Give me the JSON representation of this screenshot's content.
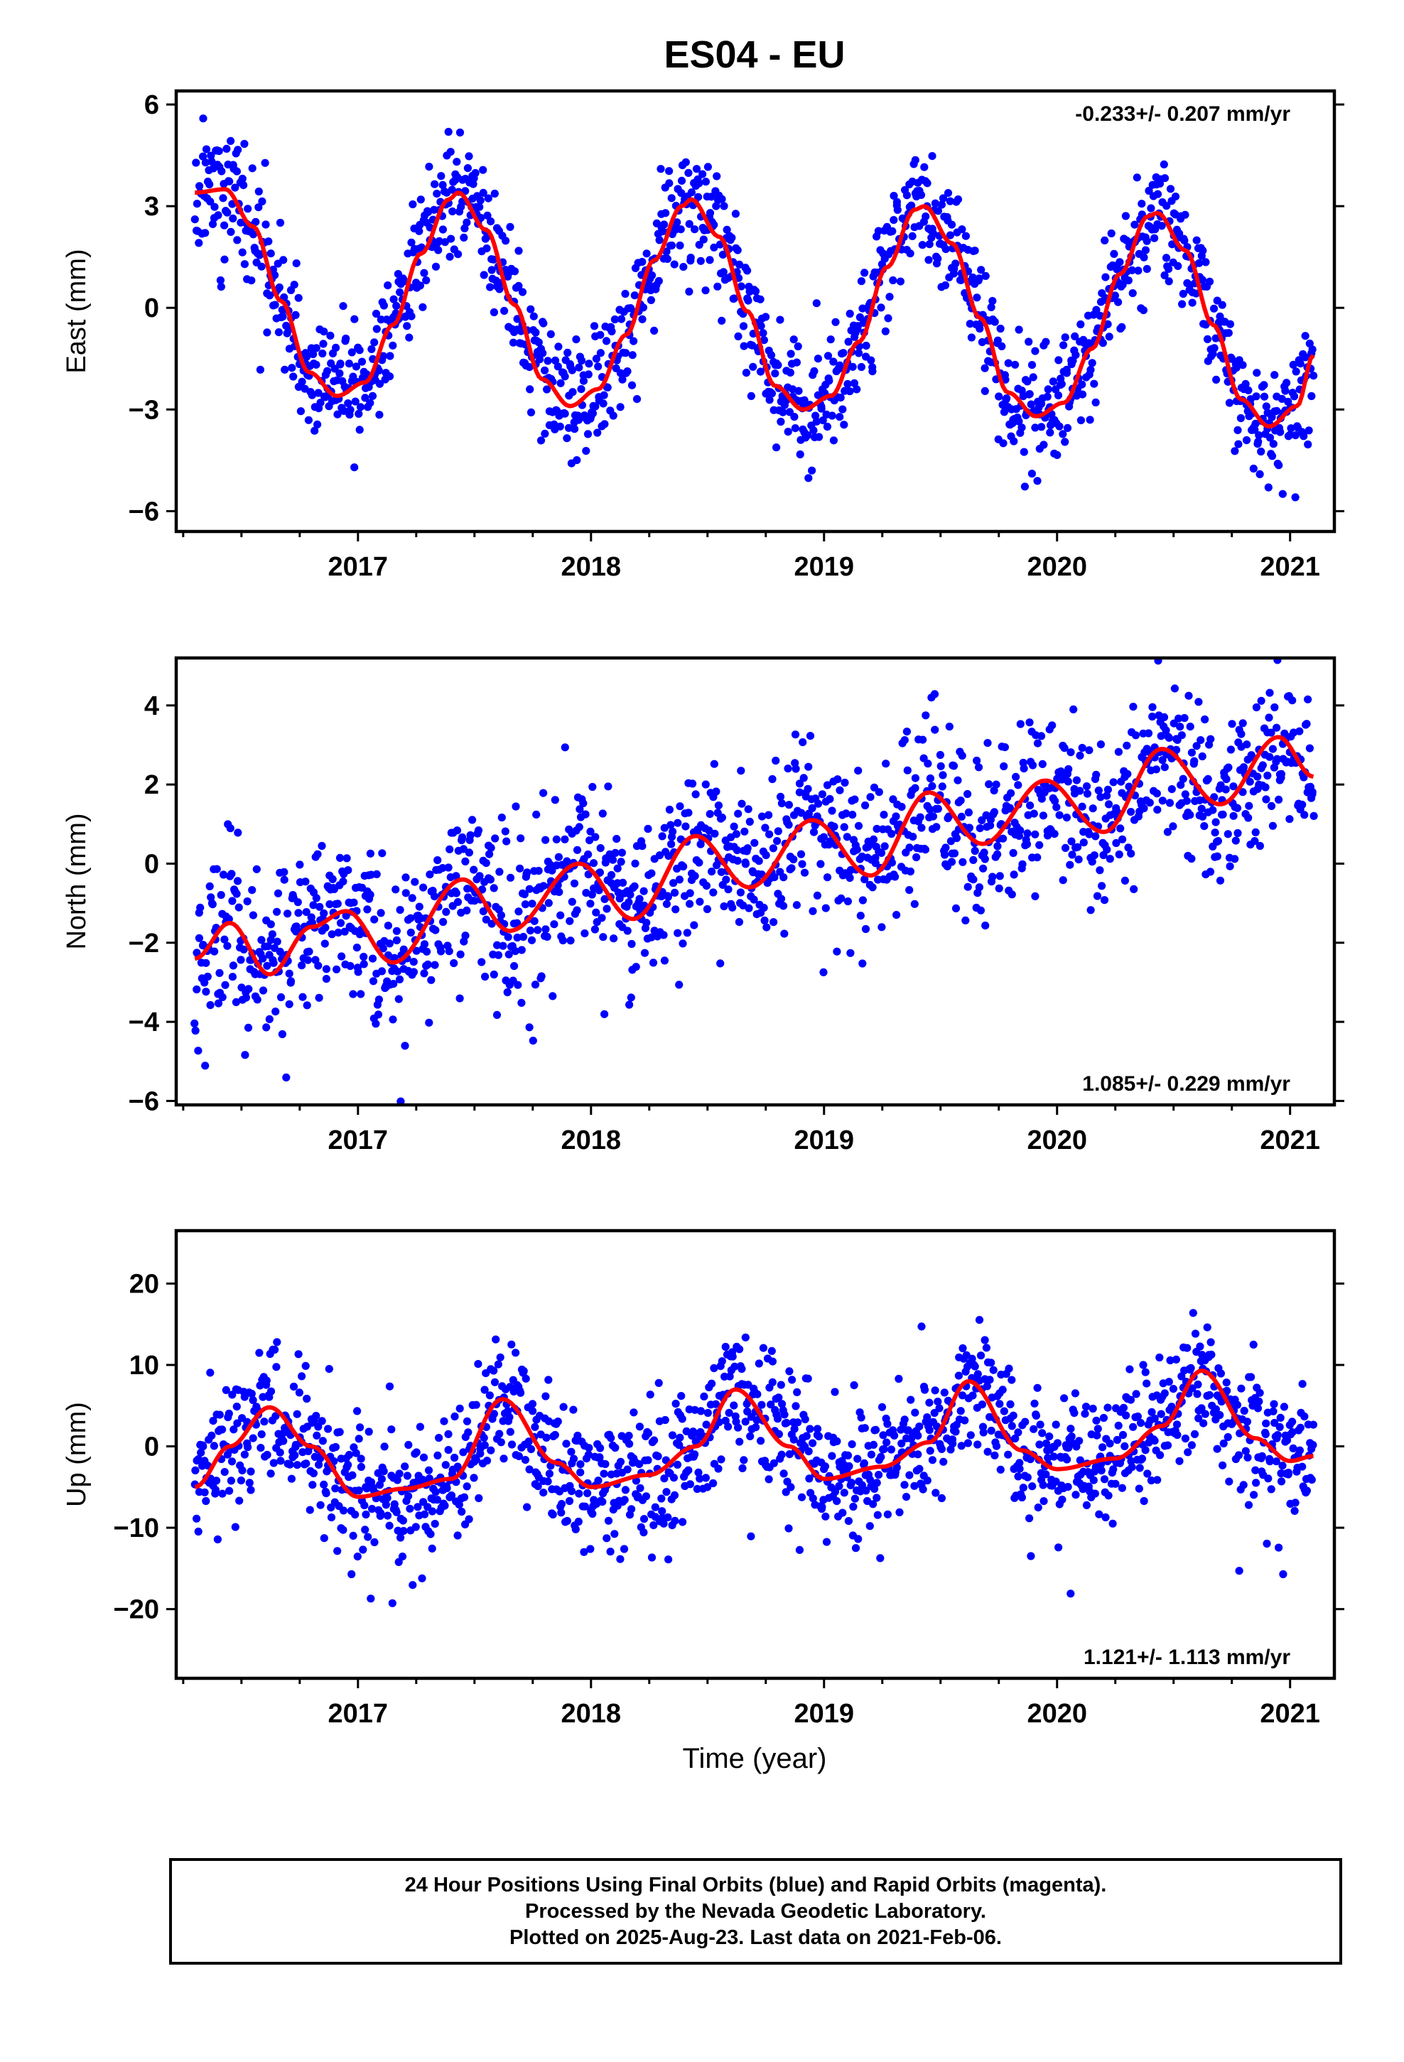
{
  "title": "ES04 - EU",
  "xlabel": "Time (year)",
  "caption": [
    "24 Hour Positions Using Final Orbits (blue) and Rapid Orbits (magenta).",
    "Processed by the Nevada Geodetic Laboratory.",
    "Plotted on 2025-Aug-23. Last data on 2021-Feb-06."
  ],
  "colors": {
    "points": "#0000ff",
    "model": "#ff0000",
    "frame": "#000000"
  },
  "chart_data": [
    {
      "type": "scatter",
      "ylabel": "East (mm)",
      "rate_label": "-0.233+/- 0.207 mm/yr",
      "xlim": [
        2016.22,
        2021.19
      ],
      "ylim": [
        -6.6,
        6.4
      ],
      "xticks": [
        2017,
        2018,
        2019,
        2020,
        2021
      ],
      "yticks": [
        6,
        3,
        0,
        -3,
        -6
      ],
      "ytick_labels": [
        "6",
        "3",
        "0",
        "−3",
        "−6"
      ],
      "data_start": 2016.3,
      "data_end": 2021.1,
      "model": {
        "type": "line",
        "x": [
          2016.3,
          2016.43,
          2016.55,
          2016.67,
          2016.79,
          2016.91,
          2017.03,
          2017.15,
          2017.27,
          2017.39,
          2017.43,
          2017.55,
          2017.67,
          2017.79,
          2017.91,
          2018.03,
          2018.15,
          2018.27,
          2018.39,
          2018.43,
          2018.55,
          2018.67,
          2018.79,
          2018.91,
          2019.03,
          2019.15,
          2019.27,
          2019.39,
          2019.43,
          2019.55,
          2019.67,
          2019.79,
          2019.91,
          2020.03,
          2020.15,
          2020.27,
          2020.39,
          2020.43,
          2020.55,
          2020.67,
          2020.79,
          2020.91,
          2021.03,
          2021.1
        ],
        "y": [
          3.4,
          3.5,
          2.4,
          0.2,
          -1.9,
          -2.6,
          -2.2,
          -0.5,
          1.6,
          3.2,
          3.4,
          2.3,
          0.1,
          -2.1,
          -2.9,
          -2.4,
          -0.8,
          1.4,
          3.0,
          3.2,
          2.1,
          -0.1,
          -2.3,
          -3.0,
          -2.6,
          -1.0,
          1.2,
          2.9,
          3.0,
          1.9,
          -0.3,
          -2.5,
          -3.2,
          -2.8,
          -1.2,
          1.0,
          2.7,
          2.8,
          1.7,
          -0.5,
          -2.7,
          -3.5,
          -2.9,
          -1.4
        ]
      },
      "points": {
        "model": "sinusoid_plus_scatter",
        "trend": -0.233,
        "annual_amp": 3.2,
        "peak_phase": 0.42,
        "noise_sd": 0.9,
        "n": 1450,
        "seed": 11
      }
    },
    {
      "type": "scatter",
      "ylabel": "North (mm)",
      "rate_label": "1.085+/- 0.229 mm/yr",
      "xlim": [
        2016.22,
        2021.19
      ],
      "ylim": [
        -6.1,
        5.2
      ],
      "xticks": [
        2017,
        2018,
        2019,
        2020,
        2021
      ],
      "yticks": [
        4,
        2,
        0,
        -2,
        -4,
        -6
      ],
      "ytick_labels": [
        "4",
        "2",
        "0",
        "−2",
        "−4",
        "−6"
      ],
      "data_start": 2016.3,
      "data_end": 2021.1,
      "model": {
        "type": "line",
        "x": [
          2016.3,
          2016.45,
          2016.62,
          2016.8,
          2016.95,
          2017.15,
          2017.45,
          2017.65,
          2017.95,
          2018.18,
          2018.45,
          2018.68,
          2018.95,
          2019.2,
          2019.45,
          2019.68,
          2019.95,
          2020.2,
          2020.45,
          2020.7,
          2020.95,
          2021.1
        ],
        "y": [
          -2.4,
          -1.5,
          -2.8,
          -1.6,
          -1.2,
          -2.5,
          -0.4,
          -1.7,
          0.0,
          -1.4,
          0.7,
          -0.6,
          1.1,
          -0.3,
          1.8,
          0.5,
          2.1,
          0.8,
          2.9,
          1.5,
          3.2,
          2.2
        ]
      },
      "points": {
        "model": "trend_plus_scatter",
        "trend": 1.085,
        "noise_sd": 1.05,
        "n": 1450,
        "seed": 23
      }
    },
    {
      "type": "scatter",
      "ylabel": "Up (mm)",
      "rate_label": "1.121+/- 1.113 mm/yr",
      "xlim": [
        2016.22,
        2021.19
      ],
      "ylim": [
        -28.5,
        26.5
      ],
      "xticks": [
        2017,
        2018,
        2019,
        2020,
        2021
      ],
      "yticks": [
        20,
        10,
        0,
        -10,
        -20
      ],
      "ytick_labels": [
        "20",
        "10",
        "0",
        "−10",
        "−20"
      ],
      "data_start": 2016.3,
      "data_end": 2021.1,
      "model": {
        "type": "line",
        "x": [
          2016.3,
          2016.45,
          2016.62,
          2016.8,
          2017.0,
          2017.2,
          2017.4,
          2017.62,
          2017.85,
          2018.0,
          2018.25,
          2018.45,
          2018.62,
          2018.85,
          2019.0,
          2019.25,
          2019.45,
          2019.62,
          2019.85,
          2020.0,
          2020.25,
          2020.45,
          2020.62,
          2020.85,
          2021.0,
          2021.1
        ],
        "y": [
          -5.0,
          0.0,
          4.8,
          0.0,
          -6.2,
          -5.2,
          -4.0,
          5.8,
          -2.0,
          -5.0,
          -3.5,
          0.0,
          7.0,
          0.0,
          -4.0,
          -2.5,
          0.5,
          8.0,
          -0.5,
          -2.8,
          -1.5,
          2.5,
          9.3,
          1.0,
          -1.8,
          -1.2
        ]
      },
      "points": {
        "model": "model_plus_scatter",
        "trend": 1.121,
        "noise_sd": 4.3,
        "n": 1450,
        "seed": 37
      }
    }
  ]
}
